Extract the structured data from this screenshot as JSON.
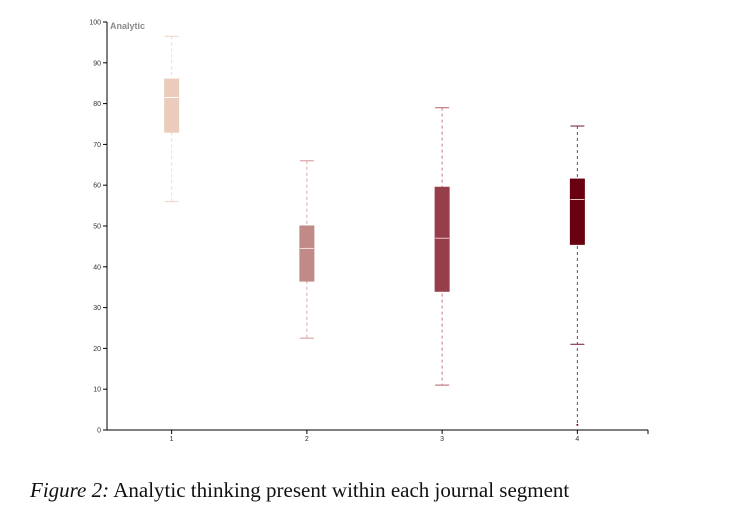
{
  "chart_data": {
    "type": "box",
    "ylabel": "Analytic",
    "xlabel": "",
    "ylim": [
      0,
      100
    ],
    "yticks": [
      "0",
      "10",
      "20",
      "30",
      "40",
      "50",
      "60",
      "70",
      "80",
      "90",
      "100"
    ],
    "categories": [
      "1",
      "2",
      "3",
      "4"
    ],
    "series": [
      {
        "min": 56,
        "q1": 73,
        "median": 81.5,
        "q3": 86,
        "max": 96.5,
        "color": "#ebcbbb",
        "whisker_color": "#f0d9cf",
        "median_color": "#ffffff"
      },
      {
        "min": 22.5,
        "q1": 36.5,
        "median": 44.5,
        "q3": 50,
        "max": 66,
        "color": "#c08a86",
        "whisker_color": "#d9a8a8",
        "median_color": "#f2dede"
      },
      {
        "min": 11,
        "q1": 34,
        "median": 47,
        "q3": 59.5,
        "max": 79,
        "color": "#963f4a",
        "whisker_color": "#c27a86",
        "median_color": "#e8c4c8"
      },
      {
        "min": 1,
        "q1": 45.5,
        "median": 56.5,
        "q3": 61.5,
        "max": 74.5,
        "color": "#68000f",
        "whisker_color": "#8c3f52",
        "median_color": "#e8c4c8",
        "lower_whisker_cap": 21,
        "outliers": [
          1
        ]
      }
    ],
    "grid": false,
    "legend": "none"
  },
  "caption": {
    "label": "Figure 2:",
    "text": " Analytic thinking present within each journal segment"
  }
}
